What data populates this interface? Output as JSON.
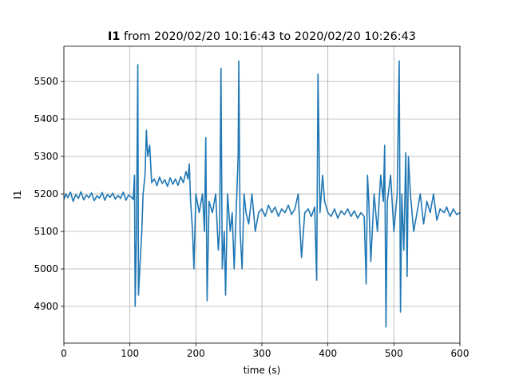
{
  "chart_data": {
    "type": "line",
    "title": [
      "I1",
      " from 2020/02/20 10:16:43 to 2020/02/20 10:26:43"
    ],
    "xlabel": "time (s)",
    "ylabel": "I1",
    "xlim": [
      0,
      600
    ],
    "xticks": [
      0,
      100,
      200,
      300,
      400,
      500,
      600
    ],
    "ylim": [
      4802,
      5594
    ],
    "yticks": [
      4900,
      5000,
      5100,
      5200,
      5300,
      5400,
      5500
    ],
    "grid": true,
    "series": [
      {
        "name": "I1",
        "color": "#1f77b4",
        "x": [
          0,
          3,
          6,
          10,
          14,
          18,
          22,
          26,
          30,
          34,
          38,
          42,
          46,
          50,
          54,
          58,
          62,
          66,
          70,
          74,
          78,
          82,
          86,
          90,
          94,
          98,
          102,
          105,
          107,
          108,
          110,
          112,
          113,
          115,
          118,
          120,
          123,
          125,
          127,
          130,
          133,
          137,
          141,
          145,
          149,
          153,
          157,
          161,
          165,
          169,
          173,
          177,
          181,
          185,
          188,
          190,
          192,
          195,
          197,
          200,
          205,
          210,
          213,
          215,
          217,
          220,
          225,
          230,
          234,
          236,
          238,
          240,
          243,
          245,
          248,
          252,
          255,
          258,
          262,
          264,
          265,
          267,
          270,
          273,
          276,
          280,
          285,
          290,
          295,
          300,
          305,
          310,
          315,
          320,
          325,
          330,
          335,
          340,
          345,
          350,
          355,
          360,
          365,
          370,
          375,
          380,
          383,
          385,
          388,
          392,
          395,
          400,
          405,
          410,
          415,
          420,
          425,
          430,
          435,
          440,
          445,
          450,
          455,
          458,
          460,
          462,
          465,
          470,
          475,
          480,
          484,
          486,
          488,
          490,
          495,
          500,
          505,
          508,
          510,
          512,
          515,
          518,
          520,
          522,
          525,
          530,
          535,
          540,
          545,
          550,
          555,
          560,
          565,
          570,
          576,
          580,
          585,
          590,
          595,
          600
        ],
        "values": [
          5185,
          5200,
          5190,
          5205,
          5180,
          5198,
          5188,
          5206,
          5184,
          5197,
          5190,
          5203,
          5182,
          5195,
          5189,
          5204,
          5183,
          5199,
          5191,
          5202,
          5186,
          5196,
          5188,
          5205,
          5183,
          5197,
          5192,
          5185,
          5250,
          4900,
          5100,
          5545,
          4930,
          5000,
          5100,
          5200,
          5250,
          5370,
          5300,
          5330,
          5230,
          5240,
          5222,
          5245,
          5228,
          5238,
          5220,
          5243,
          5226,
          5240,
          5223,
          5246,
          5230,
          5260,
          5240,
          5280,
          5180,
          5100,
          5000,
          5200,
          5150,
          5200,
          5100,
          5350,
          4915,
          5180,
          5150,
          5200,
          5050,
          5100,
          5535,
          5000,
          5100,
          4930,
          5200,
          5100,
          5150,
          5000,
          5200,
          5300,
          5555,
          5100,
          5000,
          5200,
          5150,
          5120,
          5200,
          5100,
          5150,
          5160,
          5140,
          5170,
          5150,
          5165,
          5140,
          5160,
          5150,
          5170,
          5145,
          5160,
          5200,
          5030,
          5150,
          5160,
          5140,
          5165,
          4970,
          5520,
          5150,
          5250,
          5180,
          5150,
          5140,
          5160,
          5135,
          5155,
          5145,
          5160,
          5140,
          5155,
          5135,
          5150,
          5140,
          4960,
          5250,
          5180,
          5020,
          5200,
          5100,
          5250,
          5180,
          5330,
          4845,
          5180,
          5250,
          5100,
          5200,
          5555,
          4885,
          5200,
          5050,
          5310,
          4980,
          5300,
          5200,
          5100,
          5150,
          5200,
          5120,
          5180,
          5150,
          5200,
          5130,
          5160,
          5150,
          5165,
          5140,
          5160,
          5145,
          5150
        ]
      }
    ]
  }
}
